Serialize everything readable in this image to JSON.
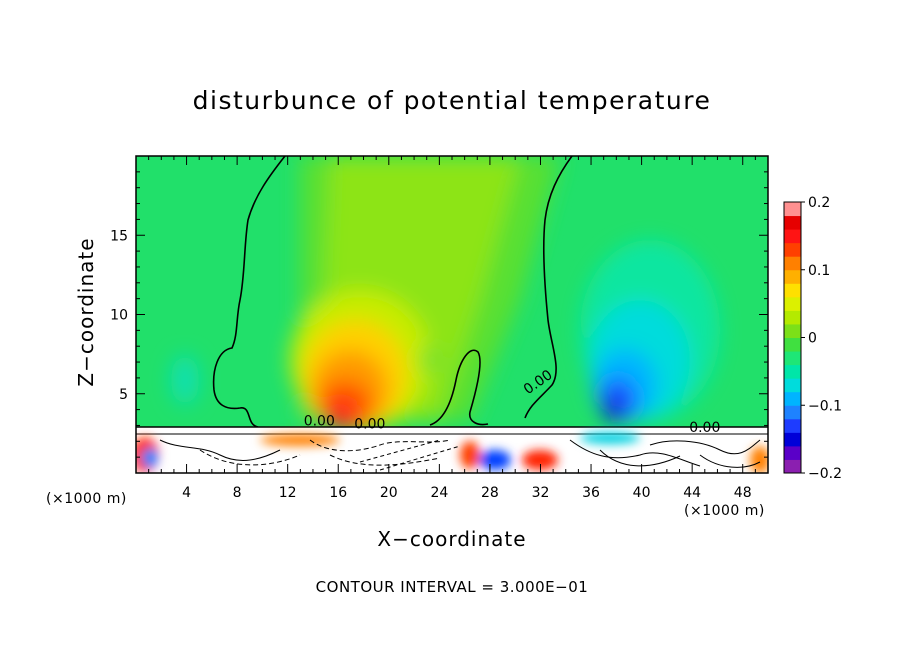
{
  "chart_data": {
    "type": "heatmap",
    "title": "disturbunce of potential temperature",
    "xlabel": "X−coordinate",
    "ylabel": "Z−coordinate",
    "x_unit_label": "(×1000 m)",
    "footer": "CONTOUR INTERVAL = 3.000E−01",
    "xlim": [
      0,
      50
    ],
    "ylim": [
      0,
      20
    ],
    "x_ticks": [
      4,
      8,
      12,
      16,
      20,
      24,
      28,
      32,
      36,
      40,
      44,
      48
    ],
    "y_ticks": [
      5,
      10,
      15
    ],
    "colorbar": {
      "range": [
        -0.2,
        0.2
      ],
      "tick_labels": [
        "0.2",
        "0.1",
        "0",
        "−0.1",
        "−0.2"
      ],
      "tick_values": [
        0.2,
        0.1,
        0,
        -0.1,
        -0.2
      ],
      "colors": [
        "#8b1fb0",
        "#5a00c8",
        "#0000d8",
        "#1e3cff",
        "#1e82ff",
        "#00b4ff",
        "#00dcdc",
        "#00e6a8",
        "#1ee676",
        "#40e040",
        "#7ce018",
        "#b4ea00",
        "#dcf000",
        "#ffe000",
        "#ffb000",
        "#ff8000",
        "#ff4000",
        "#ff1414",
        "#e60000",
        "#ff9090"
      ]
    },
    "contour_labels": [
      "0.00",
      "0.00",
      "0.00",
      "0.00"
    ],
    "features": [
      {
        "name": "warm anomaly",
        "x": 18,
        "z": 4.5,
        "value": 0.14
      },
      {
        "name": "cold anomaly",
        "x": 38,
        "z": 4.5,
        "value": -0.17
      },
      {
        "name": "terrain",
        "z_top": 3
      }
    ]
  }
}
